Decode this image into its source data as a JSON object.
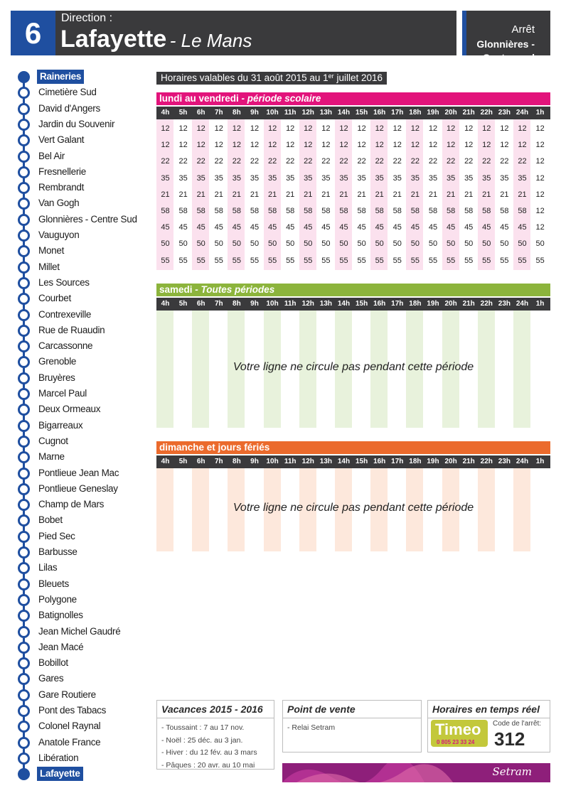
{
  "header": {
    "line_number": "6",
    "direction_label": "Direction :",
    "direction_name": "Lafayette",
    "direction_city": "- Le Mans",
    "stop_label": "Arrêt",
    "stop_name": "Glonnières -\nCentre sud"
  },
  "stops": [
    "Raineries",
    "Cimetière Sud",
    "David d'Angers",
    "Jardin du Souvenir",
    "Vert Galant",
    "Bel Air",
    "Fresnellerie",
    "Rembrandt",
    "Van Gogh",
    "Glonnières - Centre Sud",
    "Vauguyon",
    "Monet",
    "Millet",
    "Les Sources",
    "Courbet",
    "Contrexeville",
    "Rue de Ruaudin",
    "Carcassonne",
    "Grenoble",
    "Bruyères",
    "Marcel Paul",
    "Deux Ormeaux",
    "Bigarreaux",
    "Cugnot",
    "Marne",
    "Pontlieue Jean Mac",
    "Pontlieue Geneslay",
    "Champ de Mars",
    "Bobet",
    "Pied Sec",
    "Barbusse",
    "Lilas",
    "Bleuets",
    "Polygone",
    "Batignolles",
    "Jean Michel Gaudré",
    "Jean Macé",
    "Bobillot",
    "Gares",
    "Gare Routiere",
    "Pont des Tabacs",
    "Colonel Raynal",
    "Anatole France",
    "Libération",
    "Lafayette"
  ],
  "validity": {
    "text_before": "Horaires valables du 31 août 2015 au 1",
    "sup": "er",
    "text_after": " juillet 2016"
  },
  "hours": [
    "4h",
    "5h",
    "6h",
    "7h",
    "8h",
    "9h",
    "10h",
    "11h",
    "12h",
    "13h",
    "14h",
    "15h",
    "16h",
    "17h",
    "18h",
    "19h",
    "20h",
    "21h",
    "22h",
    "23h",
    "24h",
    "1h"
  ],
  "weekday": {
    "title": "lundi au vendredi",
    "subtitle": "- période scolaire",
    "color": "#e2137b",
    "stripe_color": "#fbe1ee",
    "rows": [
      [
        "12",
        "12",
        "12",
        "12",
        "12",
        "12",
        "12",
        "12",
        "12",
        "12",
        "12",
        "12",
        "12",
        "12",
        "12",
        "12",
        "12",
        "12",
        "12",
        "12",
        "12",
        "12"
      ],
      [
        "12",
        "12",
        "12",
        "12",
        "12",
        "12",
        "12",
        "12",
        "12",
        "12",
        "12",
        "12",
        "12",
        "12",
        "12",
        "12",
        "12",
        "12",
        "12",
        "12",
        "12",
        "12"
      ],
      [
        "22",
        "22",
        "22",
        "22",
        "22",
        "22",
        "22",
        "22",
        "22",
        "22",
        "22",
        "22",
        "22",
        "22",
        "22",
        "22",
        "22",
        "22",
        "22",
        "22",
        "22",
        "12"
      ],
      [
        "35",
        "35",
        "35",
        "35",
        "35",
        "35",
        "35",
        "35",
        "35",
        "35",
        "35",
        "35",
        "35",
        "35",
        "35",
        "35",
        "35",
        "35",
        "35",
        "35",
        "35",
        "12"
      ],
      [
        "21",
        "21",
        "21",
        "21",
        "21",
        "21",
        "21",
        "21",
        "21",
        "21",
        "21",
        "21",
        "21",
        "21",
        "21",
        "21",
        "21",
        "21",
        "21",
        "21",
        "21",
        "12"
      ],
      [
        "58",
        "58",
        "58",
        "58",
        "58",
        "58",
        "58",
        "58",
        "58",
        "58",
        "58",
        "58",
        "58",
        "58",
        "58",
        "58",
        "58",
        "58",
        "58",
        "58",
        "58",
        "12"
      ],
      [
        "45",
        "45",
        "45",
        "45",
        "45",
        "45",
        "45",
        "45",
        "45",
        "45",
        "45",
        "45",
        "45",
        "45",
        "45",
        "45",
        "45",
        "45",
        "45",
        "45",
        "45",
        "12"
      ],
      [
        "50",
        "50",
        "50",
        "50",
        "50",
        "50",
        "50",
        "50",
        "50",
        "50",
        "50",
        "50",
        "50",
        "50",
        "50",
        "50",
        "50",
        "50",
        "50",
        "50",
        "50",
        "50"
      ],
      [
        "55",
        "55",
        "55",
        "55",
        "55",
        "55",
        "55",
        "55",
        "55",
        "55",
        "55",
        "55",
        "55",
        "55",
        "55",
        "55",
        "55",
        "55",
        "55",
        "55",
        "55",
        "55"
      ]
    ]
  },
  "saturday": {
    "title": "samedi",
    "subtitle": "- Toutes périodes",
    "color": "#8cb43c",
    "stripe_color": "#e8f2dc",
    "no_service": "Votre ligne ne circule pas pendant cette période"
  },
  "sunday": {
    "title": "dimanche et jours fériés",
    "color": "#eb6a2c",
    "stripe_color": "#fde8dc",
    "no_service": "Votre ligne ne circule pas pendant cette période"
  },
  "footer": {
    "holidays": {
      "title": "Vacances 2015 - 2016",
      "lines": [
        "- Toussaint : 7 au 17 nov.",
        "- Noël : 25 déc. au 3 jan.",
        "- Hiver : du 12 fév. au 3 mars",
        "- Pâques : 20 avr. au 10 mai"
      ]
    },
    "sales": {
      "title": "Point de vente",
      "lines": [
        "- Relai Setram"
      ]
    },
    "realtime": {
      "title": "Horaires en temps réel",
      "logo_text": "Timeo",
      "logo_phone": "0 805 23 33 24",
      "code_label": "Code de l'arrêt:",
      "code": "312"
    },
    "brand": "Setram"
  },
  "colors": {
    "line_blue": "#1f4fa0",
    "dark_grey": "#3a3a3c",
    "brand_purple": "#8e1f7a"
  }
}
